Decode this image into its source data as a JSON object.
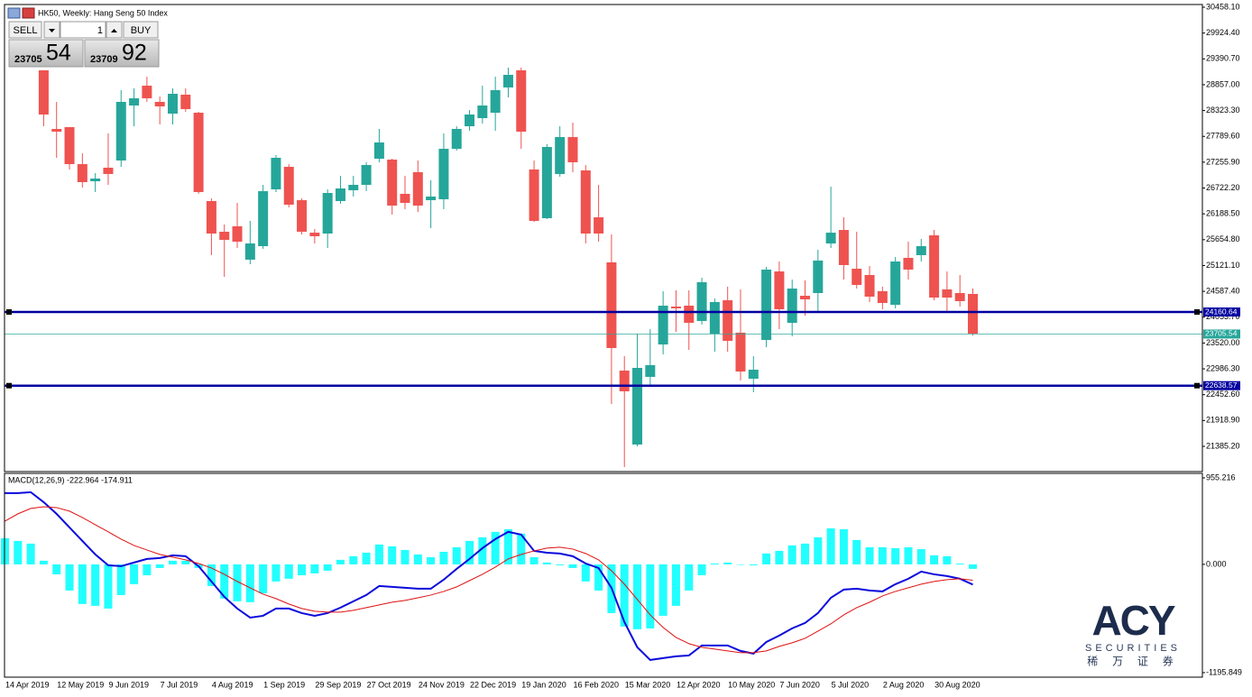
{
  "window": {
    "title": "HK50, Weekly:  Hang Seng 50 Index"
  },
  "trade_panel": {
    "sell": "SELL",
    "buy": "BUY",
    "lots": "1",
    "bid": {
      "big": "23705",
      "small": "54"
    },
    "ask": {
      "big": "23709",
      "small": "92"
    }
  },
  "chart_data": [
    {
      "type": "candlestick",
      "categories": [
        "14 Apr 2019",
        null,
        null,
        null,
        "12 May 2019",
        null,
        null,
        null,
        "9 Jun 2019",
        null,
        null,
        null,
        "7 Jul 2019",
        null,
        null,
        null,
        "4 Aug 2019",
        null,
        null,
        null,
        "1 Sep 2019",
        null,
        null,
        null,
        "29 Sep 2019",
        null,
        null,
        null,
        "27 Oct 2019",
        null,
        null,
        null,
        "24 Nov 2019",
        null,
        null,
        null,
        "22 Dec 2019",
        null,
        null,
        null,
        "19 Jan 2020",
        null,
        null,
        null,
        "16 Feb 2020",
        null,
        null,
        null,
        "15 Mar 2020",
        null,
        null,
        null,
        "12 Apr 2020",
        null,
        null,
        null,
        "10 May 2020",
        null,
        null,
        null,
        "7 Jun 2020",
        null,
        null,
        null,
        "5 Jul 2020",
        null,
        null,
        null,
        "2 Aug 2020",
        null,
        null,
        null,
        "30 Aug 2020",
        null,
        null,
        null
      ],
      "open": [
        null,
        null,
        null,
        29154,
        27943,
        27980,
        27216,
        26862,
        27142,
        27291,
        28427,
        28837,
        28502,
        28260,
        28651,
        28278,
        26453,
        25819,
        25931,
        25242,
        25521,
        26695,
        27160,
        26471,
        25800,
        25782,
        26453,
        26676,
        26788,
        27328,
        27309,
        26602,
        27049,
        26471,
        26490,
        27533,
        27999,
        28166,
        28278,
        28800,
        29154,
        27105,
        26099,
        27012,
        27775,
        27086,
        26117,
        25186,
        22950,
        21422,
        22820,
        23490,
        24273,
        24291,
        23975,
        23714,
        24403,
        23733,
        22782,
        23583,
        24999,
        23937,
        24496,
        24552,
        25577,
        25856,
        25055,
        24925,
        24590,
        24310,
        25279,
        25335,
        25745,
        24627,
        24552,
        24534
      ],
      "high": [
        null,
        null,
        null,
        29154,
        28502,
        27980,
        27440,
        27030,
        27850,
        28744,
        28781,
        29023,
        28614,
        28781,
        28781,
        28297,
        26508,
        25968,
        26415,
        26043,
        26788,
        27403,
        27216,
        26508,
        25875,
        26695,
        26974,
        26974,
        27254,
        27943,
        27328,
        26974,
        27291,
        26881,
        27850,
        27999,
        28334,
        28837,
        29023,
        29210,
        29210,
        27291,
        27626,
        27999,
        28073,
        27198,
        26788,
        25763,
        23248,
        23714,
        23807,
        24590,
        24608,
        24608,
        24869,
        24440,
        24683,
        24627,
        23248,
        25093,
        25204,
        24832,
        24813,
        25446,
        26751,
        26117,
        25819,
        25111,
        24683,
        25297,
        25614,
        25670,
        25856,
        24999,
        24925,
        24645
      ],
      "low": [
        null,
        null,
        null,
        27999,
        27347,
        27105,
        26732,
        26639,
        26788,
        27160,
        27999,
        28502,
        28036,
        28036,
        28297,
        26602,
        25335,
        24888,
        25484,
        25148,
        25465,
        26639,
        26322,
        25763,
        25577,
        25484,
        26397,
        26546,
        26657,
        27254,
        26173,
        26285,
        26229,
        25894,
        26285,
        27496,
        27906,
        28055,
        27906,
        28595,
        27533,
        26024,
        26080,
        26956,
        27049,
        25577,
        25614,
        22261,
        20957,
        21385,
        22633,
        23285,
        23751,
        23379,
        23900,
        23341,
        23341,
        22745,
        22503,
        23434,
        23807,
        23658,
        24086,
        24180,
        25484,
        24832,
        24645,
        24366,
        24217,
        24236,
        24832,
        25204,
        24403,
        24180,
        24273,
        23677
      ],
      "close": [
        null,
        null,
        null,
        28241,
        27887,
        27216,
        26844,
        26918,
        27012,
        28502,
        28576,
        28576,
        28409,
        28669,
        28353,
        26639,
        25782,
        25651,
        25614,
        25577,
        26657,
        27347,
        26378,
        25819,
        25726,
        26620,
        26713,
        26788,
        27198,
        27663,
        26359,
        26415,
        26359,
        26546,
        27533,
        27943,
        28241,
        28427,
        28744,
        29061,
        27887,
        26043,
        27570,
        27775,
        27254,
        25782,
        25782,
        23416,
        22522,
        23006,
        23062,
        24291,
        24236,
        23937,
        24776,
        24366,
        23565,
        22931,
        22969,
        25037,
        24217,
        24645,
        24422,
        25223,
        25800,
        25130,
        24720,
        24478,
        24347,
        25204,
        25037,
        25521,
        24459,
        24459,
        24385,
        23714
      ],
      "up_color": "#26a69a",
      "down_color": "#ef5350",
      "ylim": [
        20882,
        30514
      ],
      "yticks": [
        {
          "value": 30458.1,
          "label": "30458.10"
        },
        {
          "value": 29924.4,
          "label": "29924.40"
        },
        {
          "value": 29390.7,
          "label": "29390.70"
        },
        {
          "value": 28857,
          "label": "28857.00"
        },
        {
          "value": 28323.3,
          "label": "28323.30"
        },
        {
          "value": 27789.6,
          "label": "27789.60"
        },
        {
          "value": 27255.9,
          "label": "27255.90"
        },
        {
          "value": 26722.2,
          "label": "26722.20"
        },
        {
          "value": 26188.5,
          "label": "26188.50"
        },
        {
          "value": 25654.8,
          "label": "25654.80"
        },
        {
          "value": 25121.1,
          "label": "25121.10"
        },
        {
          "value": 24587.4,
          "label": "24587.40"
        },
        {
          "value": 24053.7,
          "label": "24053.70"
        },
        {
          "value": 23520,
          "label": "23520.00"
        },
        {
          "value": 22986.3,
          "label": "22986.30"
        },
        {
          "value": 22452.6,
          "label": "22452.60"
        },
        {
          "value": 21918.9,
          "label": "21918.90"
        },
        {
          "value": 21385.2,
          "label": "21385.20"
        }
      ],
      "levels": [
        {
          "value": 24160.64,
          "color": "#0000a0",
          "kind": "horizontal-line"
        },
        {
          "value": 23705.54,
          "color": "#26a69a",
          "kind": "bid"
        },
        {
          "value": 22638.57,
          "color": "#0000a0",
          "kind": "horizontal-line"
        }
      ]
    },
    {
      "type": "macd",
      "title": "MACD(12,26,9) -222.964 -174.911",
      "series": [
        {
          "kind": "histogram",
          "color": "#22ffff",
          "values": [
            289,
            259,
            229,
            40,
            -110,
            -289,
            -438,
            -458,
            -488,
            -339,
            -219,
            -120,
            -40,
            40,
            40,
            -40,
            -239,
            -378,
            -408,
            -418,
            -319,
            -189,
            -159,
            -120,
            -100,
            -70,
            50,
            90,
            129,
            219,
            199,
            159,
            110,
            80,
            139,
            189,
            259,
            299,
            359,
            388,
            339,
            80,
            20,
            -10,
            -40,
            -189,
            -289,
            -538,
            -687,
            -717,
            -707,
            -568,
            -458,
            -289,
            -120,
            10,
            20,
            0,
            -10,
            120,
            149,
            209,
            229,
            299,
            398,
            388,
            269,
            189,
            189,
            179,
            189,
            169,
            100,
            90,
            10,
            -50
          ]
        },
        {
          "kind": "line",
          "color": "#0a0adc",
          "values": [
            787,
            787,
            797,
            687,
            558,
            408,
            259,
            110,
            -10,
            -20,
            20,
            60,
            70,
            100,
            90,
            -20,
            -189,
            -359,
            -488,
            -588,
            -568,
            -488,
            -488,
            -538,
            -568,
            -538,
            -478,
            -408,
            -339,
            -239,
            -249,
            -259,
            -269,
            -269,
            -169,
            -50,
            60,
            179,
            279,
            359,
            329,
            149,
            129,
            120,
            90,
            10,
            -40,
            -259,
            -637,
            -916,
            -1056,
            -1036,
            -1016,
            -1006,
            -896,
            -896,
            -896,
            -956,
            -986,
            -857,
            -787,
            -707,
            -647,
            -538,
            -369,
            -279,
            -269,
            -289,
            -299,
            -219,
            -159,
            -80,
            -110,
            -129,
            -159,
            -223
          ]
        },
        {
          "kind": "line",
          "color": "#e01010",
          "values": [
            478,
            558,
            618,
            637,
            627,
            588,
            518,
            438,
            359,
            279,
            209,
            159,
            110,
            80,
            50,
            10,
            -40,
            -110,
            -189,
            -259,
            -329,
            -378,
            -438,
            -488,
            -518,
            -528,
            -528,
            -508,
            -478,
            -448,
            -418,
            -398,
            -369,
            -339,
            -299,
            -249,
            -179,
            -110,
            -30,
            60,
            110,
            149,
            179,
            189,
            169,
            120,
            50,
            -70,
            -219,
            -388,
            -558,
            -697,
            -807,
            -876,
            -916,
            -936,
            -956,
            -976,
            -976,
            -956,
            -906,
            -866,
            -817,
            -737,
            -657,
            -558,
            -478,
            -418,
            -349,
            -299,
            -259,
            -219,
            -189,
            -169,
            -159,
            -175
          ]
        }
      ],
      "ylim": [
        -1236,
        1005
      ],
      "yticks": [
        955.216,
        {
          "value": 0,
          "label": "0.000"
        },
        -1195.849
      ]
    }
  ],
  "logo": {
    "brand": "ACY",
    "sub": "SECURITIES",
    "chinese": "稀 万 证 券"
  }
}
